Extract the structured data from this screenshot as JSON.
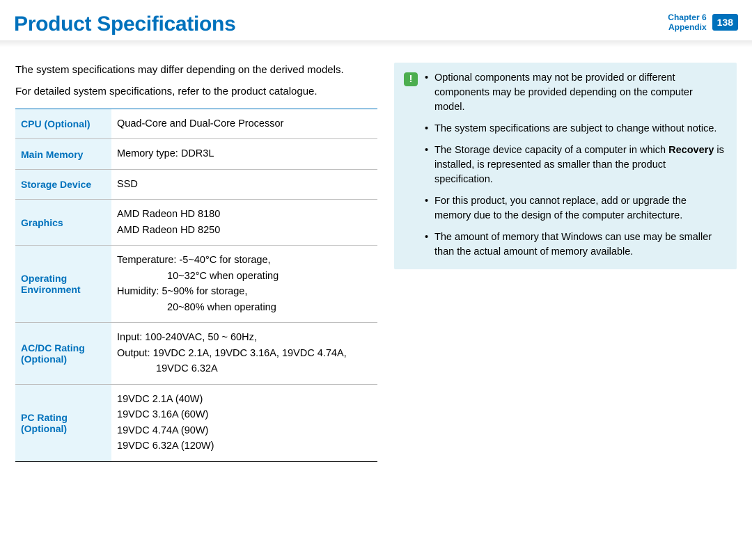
{
  "header": {
    "title": "Product Specifications",
    "chapter_line1": "Chapter 6",
    "chapter_line2": "Appendix",
    "page_number": "138"
  },
  "intro": {
    "p1": "The system specifications may differ depending on the derived models.",
    "p2": "For detailed system specifications, refer to the product catalogue."
  },
  "spec_table": {
    "rows": [
      {
        "label": "CPU (Optional)",
        "value": "Quad-Core and Dual-Core Processor"
      },
      {
        "label": "Main Memory",
        "value": "Memory type: DDR3L"
      },
      {
        "label": "Storage Device",
        "value": "SSD"
      },
      {
        "label": "Graphics",
        "value_lines": [
          "AMD Radeon HD 8180",
          "AMD Radeon HD 8250"
        ]
      },
      {
        "label": "Operating Environment",
        "temp_line": "Temperature: -5~40°C for storage,",
        "temp_sub": "10~32°C when operating",
        "hum_line": "Humidity: 5~90% for storage,",
        "hum_sub": "20~80% when operating"
      },
      {
        "label": "AC/DC Rating (Optional)",
        "in_line": "Input: 100-240VAC, 50 ~ 60Hz,",
        "out_line": "Output: 19VDC 2.1A, 19VDC 3.16A, 19VDC 4.74A,",
        "out_sub": "19VDC 6.32A"
      },
      {
        "label": "PC Rating (Optional)",
        "value_lines": [
          "19VDC 2.1A (40W)",
          "19VDC 3.16A (60W)",
          "19VDC 4.74A (90W)",
          "19VDC 6.32A (120W)"
        ]
      }
    ]
  },
  "notes": {
    "items": [
      {
        "text_a": "Optional components may not be provided or different components may be provided depending on the computer model."
      },
      {
        "text_a": "The system specifications are subject to change without notice."
      },
      {
        "text_a": "The Storage device capacity of a computer in which ",
        "bold": "Recovery",
        "text_b": " is installed, is represented as smaller than the product specification."
      },
      {
        "text_a": "For this product, you cannot replace, add or upgrade the memory due to the design of the computer architecture."
      },
      {
        "text_a": "The amount of memory that Windows can use may be smaller than the actual amount of memory available."
      }
    ]
  },
  "colors": {
    "accent": "#0071bc",
    "label_bg": "#e6f5fb",
    "note_bg": "#e1f1f6",
    "note_icon_bg": "#4cae4f"
  }
}
